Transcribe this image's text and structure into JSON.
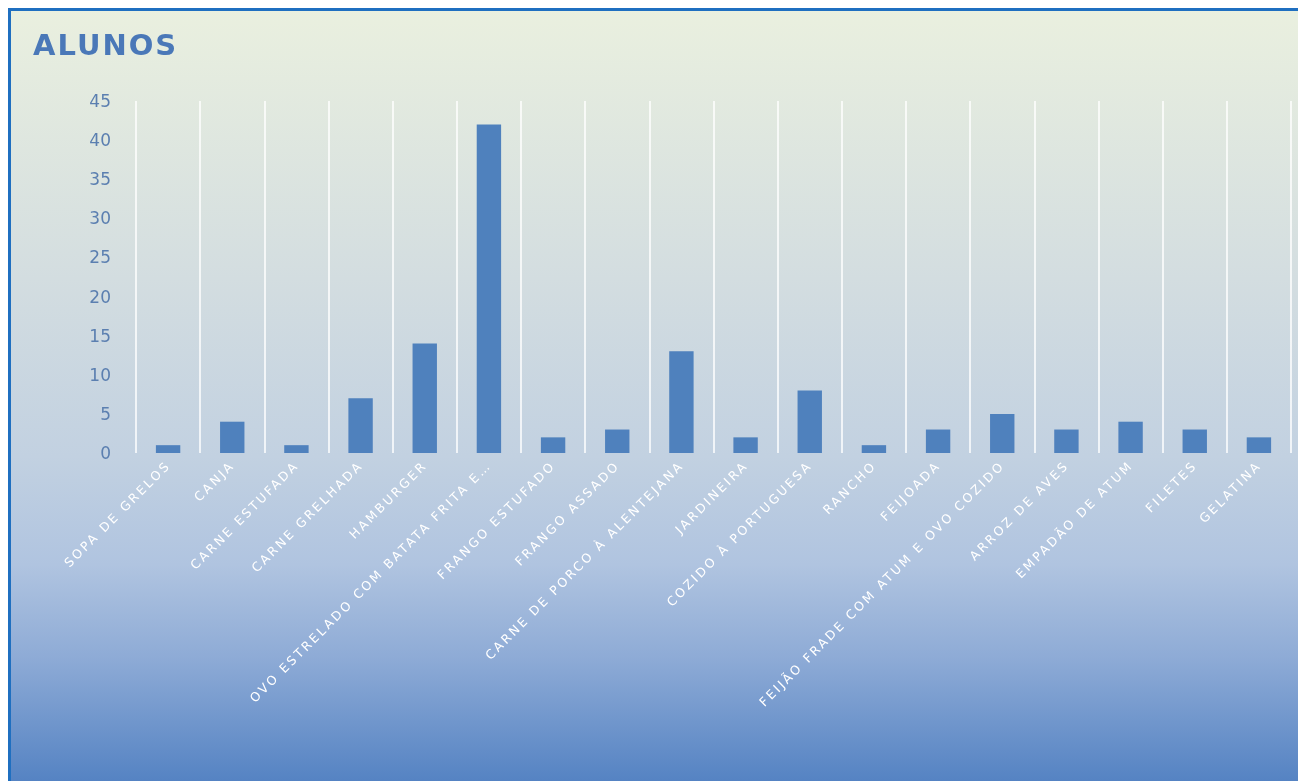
{
  "chart_data": {
    "type": "bar",
    "title": "ALUNOS",
    "categories": [
      "SOPA DE GRELOS",
      "CANJA",
      "CARNE ESTUFADA",
      "CARNE GRELHADA",
      "HAMBURGER",
      "OVO ESTRELADO COM BATATA FRITA E…",
      "FRANGO ESTUFADO",
      "FRANGO ASSADO",
      "CARNE DE PORCO À ALENTEJANA",
      "JARDINEIRA",
      "COZIDO À PORTUGUESA",
      "RANCHO",
      "FEIJOADA",
      "FEIJÃO FRADE COM ATUM E OVO COZIDO",
      "ARROZ DE AVES",
      "EMPADÃO DE ATUM",
      "FILETES",
      "GELATINA"
    ],
    "values": [
      1,
      4,
      1,
      7,
      14,
      42,
      2,
      3,
      13,
      2,
      8,
      1,
      3,
      5,
      3,
      4,
      3,
      2
    ],
    "color": "#4f81bd",
    "ylim": [
      0,
      45
    ],
    "yticks": [
      0,
      5,
      10,
      15,
      20,
      25,
      30,
      35,
      40,
      45
    ],
    "grid": "x"
  }
}
